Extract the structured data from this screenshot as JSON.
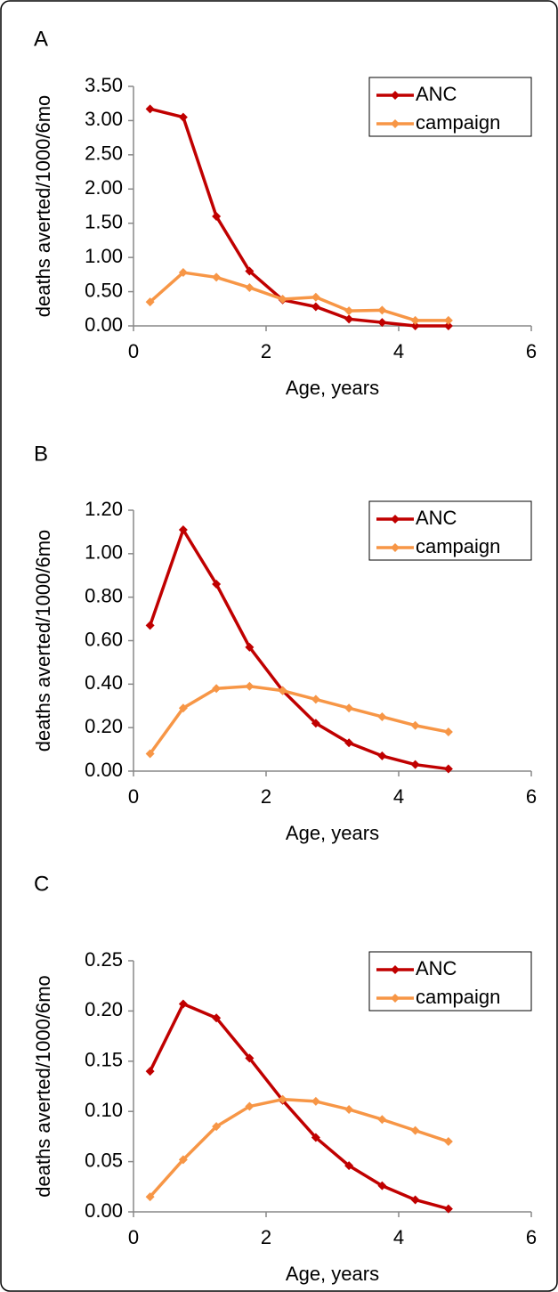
{
  "chart_data": [
    {
      "type": "line",
      "label": "A",
      "x_label": "Age, years",
      "y_label": "deaths averted/1000/6mo",
      "x": [
        0.25,
        0.75,
        1.25,
        1.75,
        2.25,
        2.75,
        3.25,
        3.75,
        4.25,
        4.75
      ],
      "series": [
        {
          "name": "ANC",
          "color": "#c00000",
          "values": [
            3.17,
            3.05,
            1.6,
            0.8,
            0.38,
            0.28,
            0.1,
            0.05,
            0.0,
            0.0
          ]
        },
        {
          "name": "campaign",
          "color": "#f79646",
          "values": [
            0.35,
            0.78,
            0.71,
            0.56,
            0.39,
            0.42,
            0.22,
            0.23,
            0.08,
            0.08
          ]
        }
      ],
      "xlim": [
        0,
        6
      ],
      "xticks": [
        0,
        2,
        4,
        6
      ],
      "ylim": [
        0,
        3.5
      ],
      "yticks": [
        {
          "value": 0,
          "label": "0.00"
        },
        {
          "value": 0.5,
          "label": "0.50"
        },
        {
          "value": 1,
          "label": "1.00"
        },
        {
          "value": 1.5,
          "label": "1.50"
        },
        {
          "value": 2,
          "label": "2.00"
        },
        {
          "value": 2.5,
          "label": "2.50"
        },
        {
          "value": 3,
          "label": "3.00"
        },
        {
          "value": 3.5,
          "label": "3.50"
        }
      ],
      "grid": false,
      "legend": "upper right"
    },
    {
      "type": "line",
      "label": "B",
      "x_label": "Age, years",
      "y_label": "deaths averted/1000/6mo",
      "x": [
        0.25,
        0.75,
        1.25,
        1.75,
        2.25,
        2.75,
        3.25,
        3.75,
        4.25,
        4.75
      ],
      "series": [
        {
          "name": "ANC",
          "color": "#c00000",
          "values": [
            0.67,
            1.11,
            0.86,
            0.57,
            0.37,
            0.22,
            0.13,
            0.07,
            0.03,
            0.01
          ]
        },
        {
          "name": "campaign",
          "color": "#f79646",
          "values": [
            0.08,
            0.29,
            0.38,
            0.39,
            0.37,
            0.33,
            0.29,
            0.25,
            0.21,
            0.18
          ]
        }
      ],
      "xlim": [
        0,
        6
      ],
      "xticks": [
        0,
        2,
        4,
        6
      ],
      "ylim": [
        0,
        1.2
      ],
      "yticks": [
        {
          "value": 0,
          "label": "0.00"
        },
        {
          "value": 0.2,
          "label": "0.20"
        },
        {
          "value": 0.4,
          "label": "0.40"
        },
        {
          "value": 0.6,
          "label": "0.60"
        },
        {
          "value": 0.8,
          "label": "0.80"
        },
        {
          "value": 1,
          "label": "1.00"
        },
        {
          "value": 1.2,
          "label": "1.20"
        }
      ],
      "grid": false,
      "legend": "upper right"
    },
    {
      "type": "line",
      "label": "C",
      "x_label": "Age, years",
      "y_label": "deaths averted/1000/6mo",
      "x": [
        0.25,
        0.75,
        1.25,
        1.75,
        2.25,
        2.75,
        3.25,
        3.75,
        4.25,
        4.75
      ],
      "series": [
        {
          "name": "ANC",
          "color": "#c00000",
          "values": [
            0.14,
            0.207,
            0.193,
            0.153,
            0.111,
            0.074,
            0.046,
            0.026,
            0.012,
            0.003
          ]
        },
        {
          "name": "campaign",
          "color": "#f79646",
          "values": [
            0.015,
            0.052,
            0.085,
            0.105,
            0.112,
            0.11,
            0.102,
            0.092,
            0.081,
            0.07
          ]
        }
      ],
      "xlim": [
        0,
        6
      ],
      "xticks": [
        0,
        2,
        4,
        6
      ],
      "ylim": [
        0,
        0.25
      ],
      "yticks": [
        {
          "value": 0,
          "label": "0.00"
        },
        {
          "value": 0.05,
          "label": "0.05"
        },
        {
          "value": 0.1,
          "label": "0.10"
        },
        {
          "value": 0.15,
          "label": "0.15"
        },
        {
          "value": 0.2,
          "label": "0.20"
        },
        {
          "value": 0.25,
          "label": "0.25"
        }
      ],
      "grid": false,
      "legend": "upper right"
    }
  ]
}
